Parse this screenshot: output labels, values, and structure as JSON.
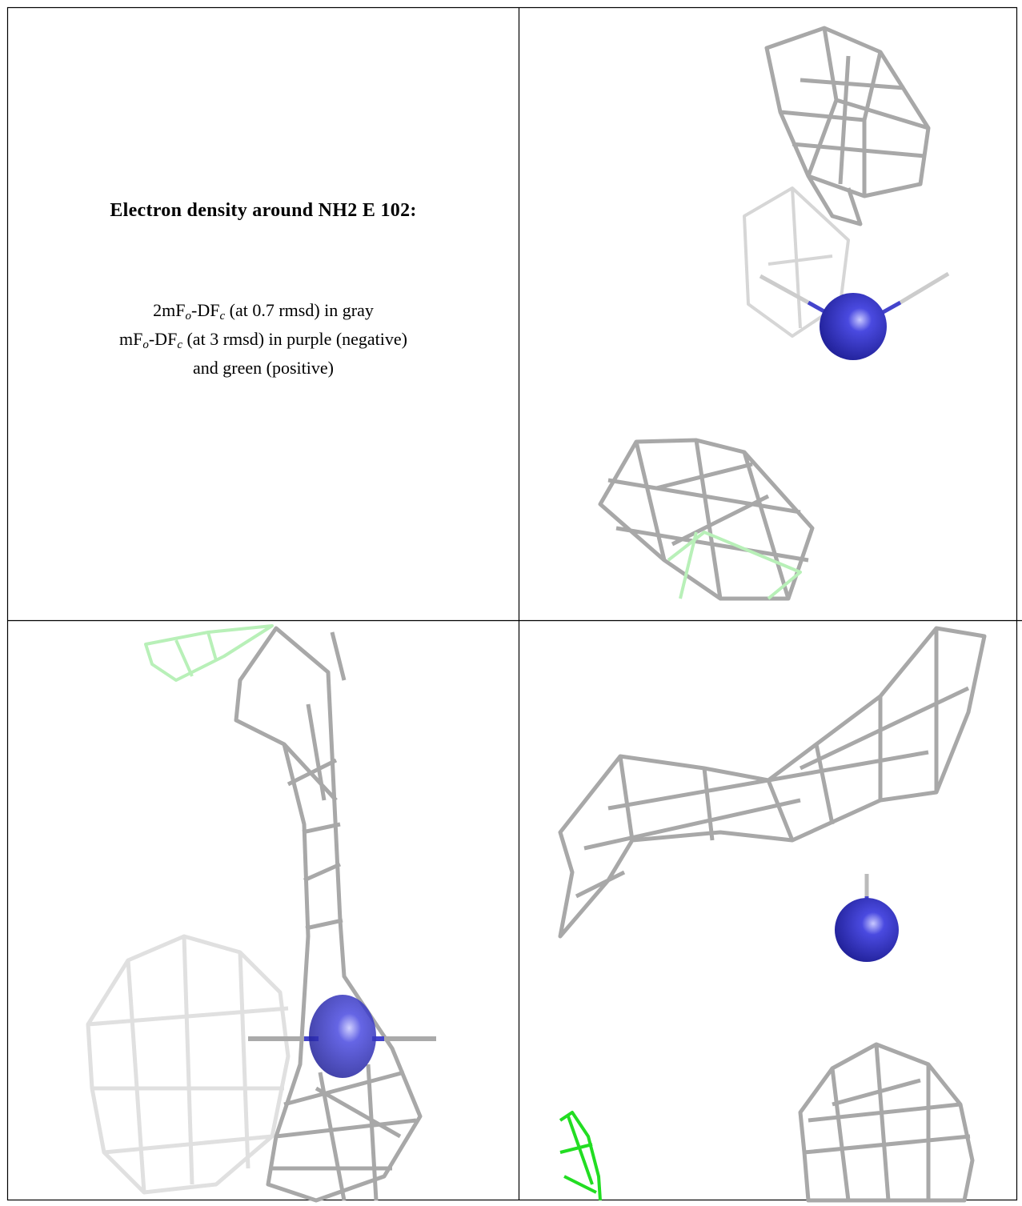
{
  "caption": {
    "title": "Electron density around NH2 E 102:",
    "lines": [
      [
        "2mF",
        "o",
        "-DF",
        "c",
        " (at 0.7 rmsd) in gray"
      ],
      [
        "mF",
        "o",
        "-DF",
        "c",
        " (at 3 rmsd) in purple (negative)"
      ],
      [
        "and green (positive)"
      ]
    ]
  }
}
